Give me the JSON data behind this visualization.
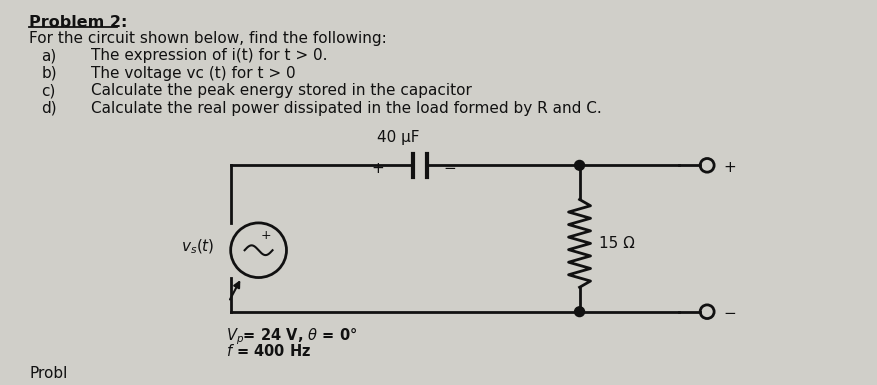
{
  "title": "Problem 2:",
  "subtitle": "For the circuit shown below, find the following:",
  "item_a_label": "a)",
  "item_a_text": "The expression of i(t) for t > 0.",
  "item_b_label": "b)",
  "item_b_text": "The voltage vc (t) for t > 0",
  "item_c_label": "c)",
  "item_c_text": "Calculate the peak energy stored in the capacitor",
  "item_d_label": "d)",
  "item_d_text": "Calculate the real power dissipated in the load formed by R and C.",
  "capacitor_label": "40 μF",
  "resistor_label": "15 Ω",
  "source_label": "v_s(t)",
  "vp_label": "V_p= 24 V, θ = 0°",
  "f_label": "f = 400 Hz",
  "bg_color": "#d0cfc9",
  "text_color": "#111111",
  "circuit_color": "#111111"
}
